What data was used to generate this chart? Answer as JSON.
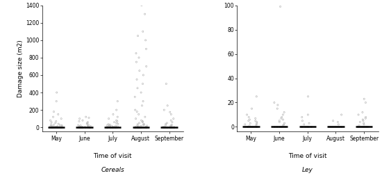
{
  "cereals": {
    "ylabel": "Damage size (m2)",
    "xlabel": "Time of visit",
    "subtitle": "Cereals",
    "categories": [
      "May",
      "June",
      "July",
      "August",
      "September"
    ],
    "ylim": [
      -50,
      1400
    ],
    "yticks": [
      0,
      200,
      400,
      600,
      800,
      1000,
      1200,
      1400
    ],
    "data": {
      "May": [
        0,
        0,
        0,
        0,
        0,
        0,
        0,
        0,
        0,
        0,
        0,
        0,
        0,
        0,
        0,
        0,
        0,
        0,
        0,
        0,
        2,
        3,
        3,
        4,
        5,
        5,
        6,
        7,
        8,
        10,
        10,
        12,
        15,
        18,
        20,
        25,
        30,
        35,
        40,
        50,
        60,
        70,
        80,
        100,
        120,
        150,
        180,
        300,
        400
      ],
      "June": [
        0,
        0,
        0,
        0,
        0,
        0,
        0,
        0,
        0,
        0,
        0,
        0,
        0,
        2,
        3,
        5,
        5,
        8,
        10,
        12,
        15,
        18,
        20,
        25,
        30,
        40,
        50,
        60,
        70,
        80,
        100,
        110,
        120
      ],
      "July": [
        0,
        0,
        0,
        0,
        0,
        0,
        0,
        0,
        0,
        0,
        0,
        0,
        0,
        0,
        0,
        0,
        0,
        2,
        3,
        5,
        5,
        8,
        10,
        12,
        15,
        18,
        20,
        25,
        30,
        35,
        40,
        50,
        60,
        70,
        80,
        100,
        120,
        150,
        200,
        300
      ],
      "August": [
        0,
        0,
        0,
        0,
        0,
        0,
        0,
        0,
        0,
        0,
        0,
        0,
        0,
        0,
        0,
        0,
        0,
        0,
        0,
        0,
        0,
        0,
        0,
        0,
        0,
        0,
        0,
        0,
        5,
        8,
        10,
        15,
        18,
        20,
        25,
        30,
        35,
        40,
        50,
        60,
        70,
        80,
        100,
        120,
        150,
        180,
        200,
        250,
        300,
        350,
        400,
        450,
        500,
        550,
        600,
        650,
        700,
        750,
        800,
        850,
        900,
        1000,
        1050,
        1100,
        1300,
        1400
      ],
      "September": [
        0,
        0,
        0,
        0,
        0,
        0,
        0,
        0,
        0,
        0,
        0,
        0,
        0,
        0,
        0,
        0,
        0,
        0,
        2,
        3,
        5,
        8,
        10,
        15,
        20,
        25,
        30,
        40,
        50,
        60,
        80,
        100,
        150,
        175,
        200,
        250,
        500
      ]
    }
  },
  "ley": {
    "xlabel": "Time of visit",
    "subtitle": "Ley",
    "categories": [
      "May",
      "June",
      "July",
      "August",
      "September"
    ],
    "ylim": [
      -4,
      100
    ],
    "yticks": [
      0,
      20,
      40,
      60,
      80,
      100
    ],
    "data": {
      "May": [
        0,
        0,
        0,
        0,
        0,
        0,
        0,
        0,
        0,
        0,
        0,
        0,
        0,
        0,
        0,
        0,
        0,
        1,
        1,
        2,
        2,
        3,
        3,
        4,
        5,
        5,
        6,
        7,
        8,
        10,
        15,
        25
      ],
      "June": [
        0,
        0,
        0,
        0,
        0,
        0,
        0,
        0,
        0,
        0,
        0,
        0,
        0,
        1,
        1,
        2,
        3,
        4,
        5,
        6,
        7,
        8,
        10,
        12,
        15,
        18,
        20,
        99
      ],
      "July": [
        0,
        0,
        0,
        0,
        0,
        0,
        0,
        0,
        0,
        0,
        0,
        0,
        2,
        3,
        5,
        8,
        10,
        25
      ],
      "August": [
        0,
        0,
        0,
        0,
        0,
        0,
        0,
        0,
        0,
        0,
        0,
        0,
        0,
        0,
        0,
        0,
        0,
        0,
        2,
        4,
        5,
        10
      ],
      "September": [
        0,
        0,
        0,
        0,
        0,
        0,
        0,
        0,
        0,
        0,
        0,
        0,
        0,
        0,
        1,
        2,
        3,
        4,
        5,
        6,
        7,
        8,
        10,
        12,
        20,
        23
      ]
    }
  },
  "point_color": "#aaaaaa",
  "point_size": 2.5,
  "line_color": "#000000",
  "bg_color": "#ffffff",
  "fontsize_label": 6.5,
  "fontsize_tick": 5.5,
  "fontsize_subtitle": 6.5
}
